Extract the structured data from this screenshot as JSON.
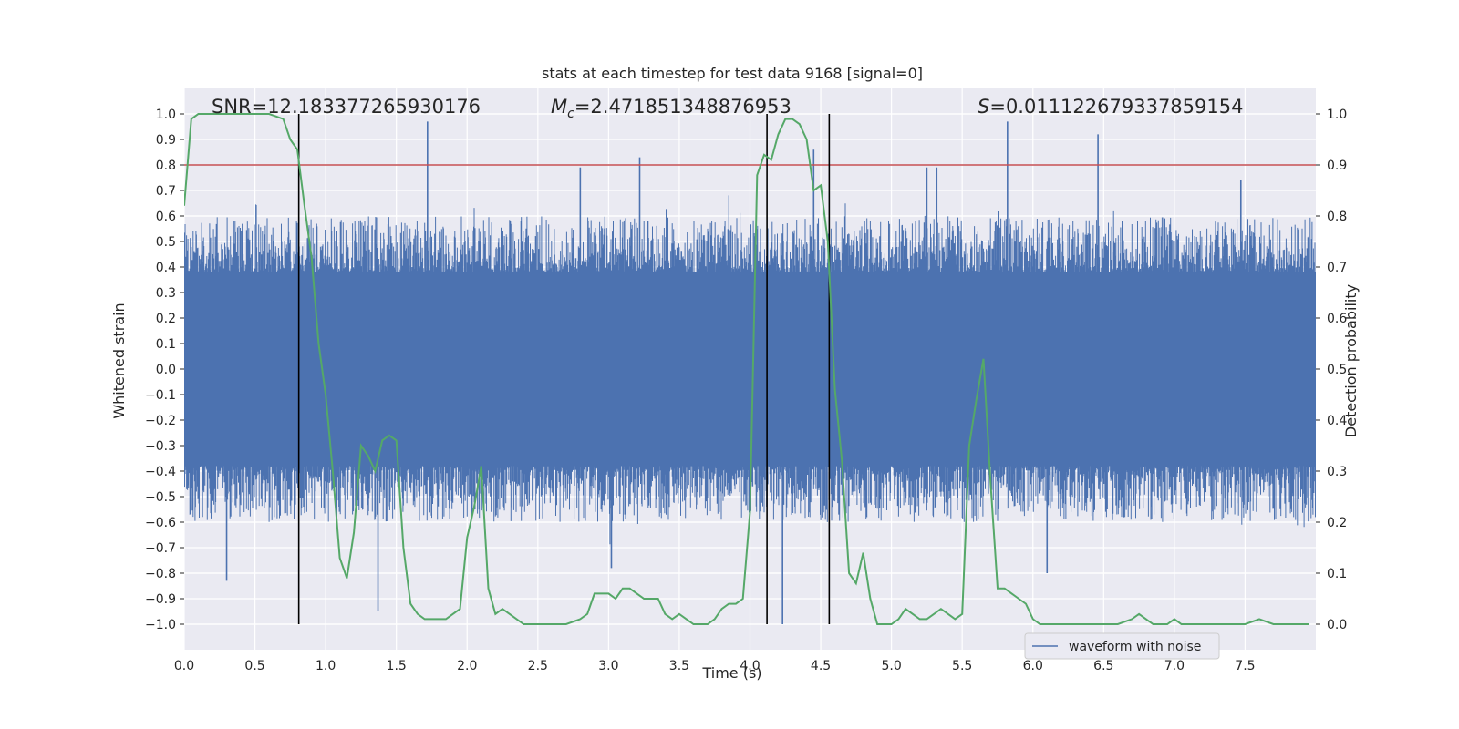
{
  "chart_data": {
    "type": "line",
    "title": "stats at each timestep for test data 9168 [signal=0]",
    "xlabel": "Time (s)",
    "ylabel_left": "Whitened strain",
    "ylabel_right": "Detection probability",
    "xlim": [
      0.0,
      8.0
    ],
    "ylim_left": [
      -1.1,
      1.1
    ],
    "ylim_right": [
      -0.05,
      1.05
    ],
    "x_ticks": [
      "0.0",
      "0.5",
      "1.0",
      "1.5",
      "2.0",
      "2.5",
      "3.0",
      "3.5",
      "4.0",
      "4.5",
      "5.0",
      "5.5",
      "6.0",
      "6.5",
      "7.0",
      "7.5"
    ],
    "y_left_ticks": [
      "1.0",
      "0.9",
      "0.8",
      "0.7",
      "0.6",
      "0.5",
      "0.4",
      "0.3",
      "0.2",
      "0.1",
      "0.0",
      "-0.1",
      "-0.2",
      "-0.3",
      "-0.4",
      "-0.5",
      "-0.6",
      "-0.7",
      "-0.8",
      "-0.9",
      "-1.0"
    ],
    "y_right_ticks": [
      "1.0",
      "0.9",
      "0.8",
      "0.7",
      "0.6",
      "0.5",
      "0.4",
      "0.3",
      "0.2",
      "0.1",
      "0.0"
    ],
    "grid": true,
    "annotations": {
      "snr": "SNR=12.183377265930176",
      "mc_symbol": "M",
      "mc_sub": "c",
      "mc_value": "=2.471851348876953",
      "s_symbol": "S",
      "s_value": "=0.011122679337859154"
    },
    "threshold": {
      "value": 0.9,
      "axis": "right",
      "color": "#c44e52"
    },
    "vertical_lines": [
      0.81,
      4.12,
      4.56
    ],
    "legend": {
      "label": "waveform with noise",
      "position": "lower-right"
    },
    "series": [
      {
        "name": "waveform with noise",
        "axis": "left",
        "color": "#4c72b0",
        "kind": "dense noise",
        "envelope": {
          "core_abs": 0.38,
          "typical_max": 0.6,
          "extreme_max": 0.98
        },
        "peaks": [
          {
            "t": 0.3,
            "v": -0.83
          },
          {
            "t": 1.37,
            "v": -0.95
          },
          {
            "t": 1.72,
            "v": 0.97
          },
          {
            "t": 2.8,
            "v": 0.79
          },
          {
            "t": 3.02,
            "v": -0.78
          },
          {
            "t": 3.22,
            "v": 0.83
          },
          {
            "t": 4.23,
            "v": -1.0
          },
          {
            "t": 4.45,
            "v": 0.86
          },
          {
            "t": 5.25,
            "v": 0.79
          },
          {
            "t": 5.32,
            "v": 0.79
          },
          {
            "t": 5.82,
            "v": 0.97
          },
          {
            "t": 6.1,
            "v": -0.8
          },
          {
            "t": 6.46,
            "v": 0.92
          },
          {
            "t": 7.47,
            "v": 0.74
          }
        ]
      },
      {
        "name": "detection probability",
        "axis": "right",
        "color": "#55a868",
        "x": [
          0.0,
          0.05,
          0.1,
          0.2,
          0.3,
          0.4,
          0.5,
          0.6,
          0.7,
          0.75,
          0.8,
          0.85,
          0.9,
          0.95,
          1.0,
          1.05,
          1.1,
          1.15,
          1.2,
          1.25,
          1.3,
          1.35,
          1.4,
          1.45,
          1.5,
          1.55,
          1.6,
          1.65,
          1.7,
          1.75,
          1.8,
          1.85,
          1.9,
          1.95,
          2.0,
          2.05,
          2.1,
          2.15,
          2.2,
          2.25,
          2.3,
          2.4,
          2.5,
          2.6,
          2.7,
          2.8,
          2.85,
          2.9,
          2.95,
          3.0,
          3.05,
          3.1,
          3.15,
          3.2,
          3.25,
          3.3,
          3.35,
          3.4,
          3.45,
          3.5,
          3.55,
          3.6,
          3.65,
          3.7,
          3.75,
          3.8,
          3.85,
          3.9,
          3.95,
          4.0,
          4.05,
          4.1,
          4.15,
          4.2,
          4.25,
          4.3,
          4.35,
          4.4,
          4.45,
          4.5,
          4.55,
          4.6,
          4.65,
          4.7,
          4.75,
          4.8,
          4.85,
          4.9,
          4.95,
          5.0,
          5.05,
          5.1,
          5.15,
          5.2,
          5.25,
          5.3,
          5.35,
          5.4,
          5.45,
          5.5,
          5.55,
          5.6,
          5.65,
          5.7,
          5.75,
          5.8,
          5.85,
          5.9,
          5.95,
          6.0,
          6.05,
          6.1,
          6.2,
          6.3,
          6.4,
          6.5,
          6.6,
          6.7,
          6.75,
          6.8,
          6.85,
          6.9,
          6.95,
          7.0,
          7.05,
          7.1,
          7.2,
          7.3,
          7.4,
          7.5,
          7.6,
          7.7,
          7.8,
          7.9,
          7.95
        ],
        "y": [
          0.82,
          0.99,
          1.0,
          1.0,
          1.0,
          1.0,
          1.0,
          1.0,
          0.99,
          0.95,
          0.93,
          0.82,
          0.72,
          0.55,
          0.45,
          0.3,
          0.13,
          0.09,
          0.18,
          0.35,
          0.33,
          0.3,
          0.36,
          0.37,
          0.36,
          0.15,
          0.04,
          0.02,
          0.01,
          0.01,
          0.01,
          0.01,
          0.02,
          0.03,
          0.17,
          0.23,
          0.31,
          0.07,
          0.02,
          0.03,
          0.02,
          0.0,
          0.0,
          0.0,
          0.0,
          0.01,
          0.02,
          0.06,
          0.06,
          0.06,
          0.05,
          0.07,
          0.07,
          0.06,
          0.05,
          0.05,
          0.05,
          0.02,
          0.01,
          0.02,
          0.01,
          0.0,
          0.0,
          0.0,
          0.01,
          0.03,
          0.04,
          0.04,
          0.05,
          0.22,
          0.88,
          0.92,
          0.91,
          0.96,
          0.99,
          0.99,
          0.98,
          0.95,
          0.85,
          0.86,
          0.75,
          0.46,
          0.32,
          0.1,
          0.08,
          0.14,
          0.05,
          0.0,
          0.0,
          0.0,
          0.01,
          0.03,
          0.02,
          0.01,
          0.01,
          0.02,
          0.03,
          0.02,
          0.01,
          0.02,
          0.35,
          0.44,
          0.52,
          0.28,
          0.07,
          0.07,
          0.06,
          0.05,
          0.04,
          0.01,
          0.0,
          0.0,
          0.0,
          0.0,
          0.0,
          0.0,
          0.0,
          0.01,
          0.02,
          0.01,
          0.0,
          0.0,
          0.0,
          0.01,
          0.0,
          0.0,
          0.0,
          0.0,
          0.0,
          0.0,
          0.01,
          0.0,
          0.0,
          0.0,
          0.0
        ]
      }
    ]
  }
}
